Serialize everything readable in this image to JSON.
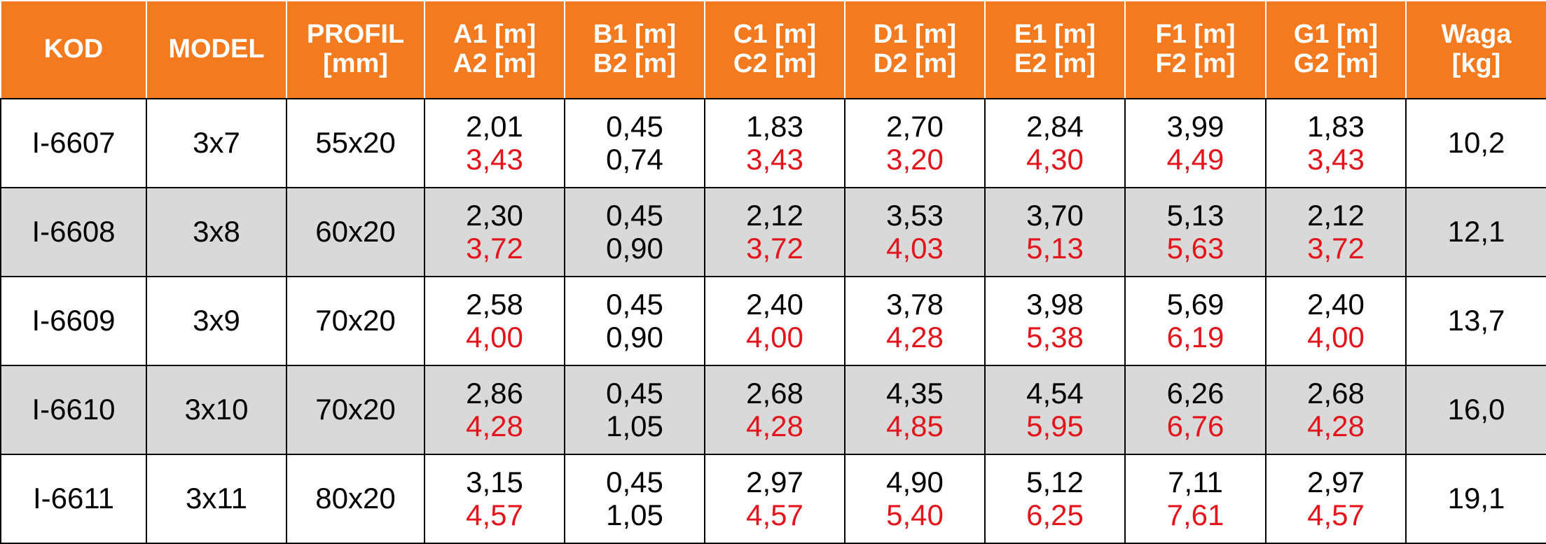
{
  "table": {
    "header": [
      [
        "KOD"
      ],
      [
        "MODEL"
      ],
      [
        "PROFIL",
        "[mm]"
      ],
      [
        "A1 [m]",
        "A2 [m]"
      ],
      [
        "B1 [m]",
        "B2 [m]"
      ],
      [
        "C1 [m]",
        "C2 [m]"
      ],
      [
        "D1 [m]",
        "D2 [m]"
      ],
      [
        "E1 [m]",
        "E2 [m]"
      ],
      [
        "F1 [m]",
        "F2 [m]"
      ],
      [
        "G1 [m]",
        "G2 [m]"
      ],
      [
        "Waga",
        "[kg]"
      ]
    ],
    "rows": [
      [
        "I-6607",
        "3x7",
        "55x20",
        [
          "2,01",
          "3,43"
        ],
        [
          "0,45",
          "0,74"
        ],
        [
          "1,83",
          "3,43"
        ],
        [
          "2,70",
          "3,20"
        ],
        [
          "2,84",
          "4,30"
        ],
        [
          "3,99",
          "4,49"
        ],
        [
          "1,83",
          "3,43"
        ],
        "10,2"
      ],
      [
        "I-6608",
        "3x8",
        "60x20",
        [
          "2,30",
          "3,72"
        ],
        [
          "0,45",
          "0,90"
        ],
        [
          "2,12",
          "3,72"
        ],
        [
          "3,53",
          "4,03"
        ],
        [
          "3,70",
          "5,13"
        ],
        [
          "5,13",
          "5,63"
        ],
        [
          "2,12",
          "3,72"
        ],
        "12,1"
      ],
      [
        "I-6609",
        "3x9",
        "70x20",
        [
          "2,58",
          "4,00"
        ],
        [
          "0,45",
          "0,90"
        ],
        [
          "2,40",
          "4,00"
        ],
        [
          "3,78",
          "4,28"
        ],
        [
          "3,98",
          "5,38"
        ],
        [
          "5,69",
          "6,19"
        ],
        [
          "2,40",
          "4,00"
        ],
        "13,7"
      ],
      [
        "I-6610",
        "3x10",
        "70x20",
        [
          "2,86",
          "4,28"
        ],
        [
          "0,45",
          "1,05"
        ],
        [
          "2,68",
          "4,28"
        ],
        [
          "4,35",
          "4,85"
        ],
        [
          "4,54",
          "5,95"
        ],
        [
          "6,26",
          "6,76"
        ],
        [
          "2,68",
          "4,28"
        ],
        "16,0"
      ],
      [
        "I-6611",
        "3x11",
        "80x20",
        [
          "3,15",
          "4,57"
        ],
        [
          "0,45",
          "1,05"
        ],
        [
          "2,97",
          "4,57"
        ],
        [
          "4,90",
          "5,40"
        ],
        [
          "5,12",
          "6,25"
        ],
        [
          "7,11",
          "7,61"
        ],
        [
          "2,97",
          "4,57"
        ],
        "19,1"
      ]
    ]
  }
}
